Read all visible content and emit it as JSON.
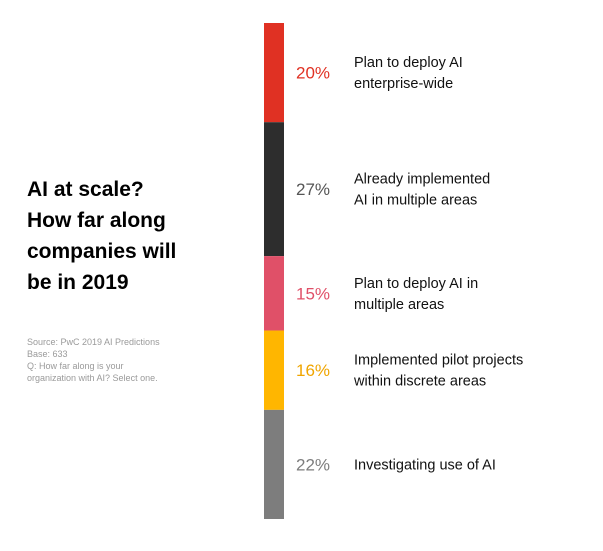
{
  "title_lines": [
    "AI at scale?",
    "How far along",
    "companies will",
    "be in 2019"
  ],
  "source": {
    "line1": "Source: PwC 2019 AI Predictions",
    "line2": "Base: 633",
    "line3": "Q: How far along is your",
    "line4": "organization with AI? Select one."
  },
  "chart_data": {
    "type": "bar",
    "orientation": "stacked-vertical",
    "unit": "%",
    "title": "AI at scale? How far along companies will be in 2019",
    "segments": [
      {
        "value": 20,
        "percent_label": "20%",
        "label_lines": [
          "Plan to deploy AI",
          "enterprise-wide"
        ],
        "color": "#e03123",
        "label_color": "#e03123"
      },
      {
        "value": 27,
        "percent_label": "27%",
        "label_lines": [
          "Already implemented",
          "AI in multiple areas"
        ],
        "color": "#2d2d2d",
        "label_color": "#555555"
      },
      {
        "value": 15,
        "percent_label": "15%",
        "label_lines": [
          "Plan to deploy AI in",
          "multiple areas"
        ],
        "color": "#e05068",
        "label_color": "#e05068"
      },
      {
        "value": 16,
        "percent_label": "16%",
        "label_lines": [
          "Implemented pilot projects",
          "within discrete areas"
        ],
        "color": "#ffb600",
        "label_color": "#f0a500"
      },
      {
        "value": 22,
        "percent_label": "22%",
        "label_lines": [
          "Investigating use of AI"
        ],
        "color": "#7d7d7d",
        "label_color": "#7d7d7d"
      }
    ]
  }
}
